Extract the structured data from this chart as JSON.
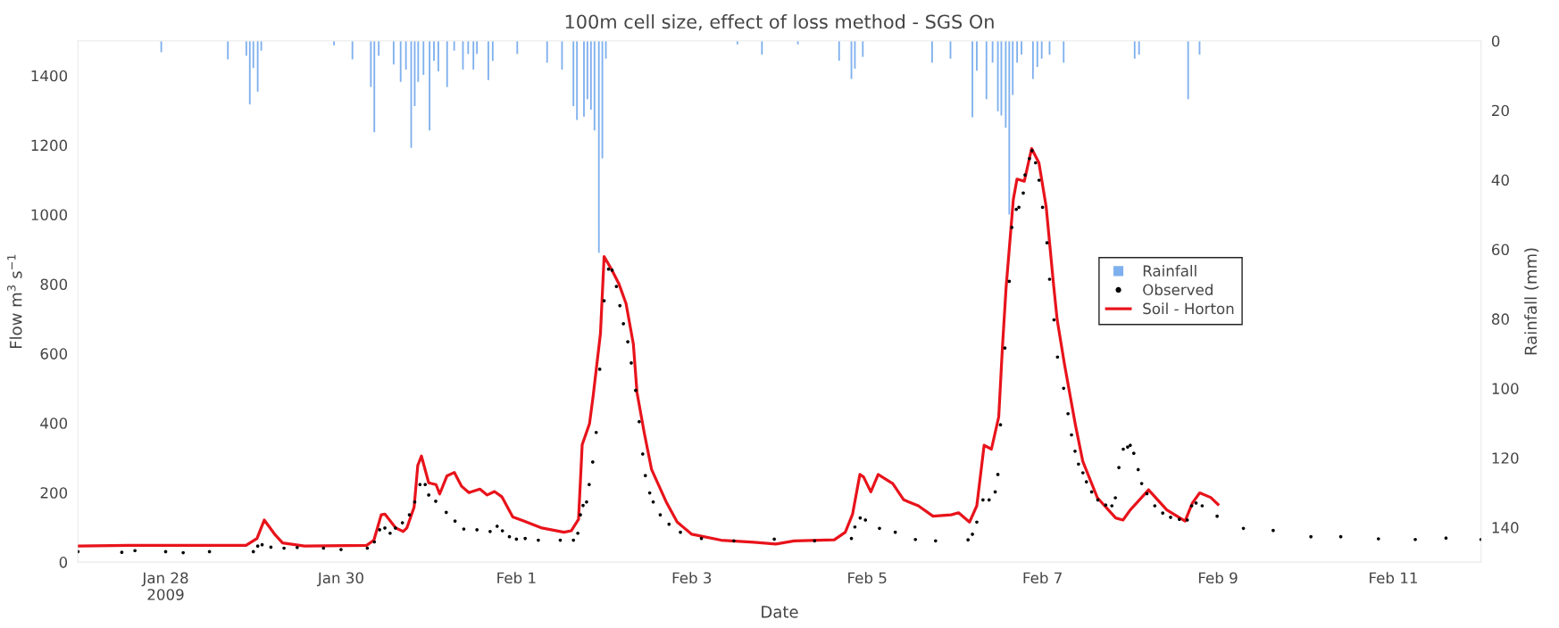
{
  "chart_data": {
    "type": "line",
    "title": "100m cell size, effect of loss method - SGS On",
    "xlabel": "Date",
    "ylabel": "Flow m$^{3}$ s$^{−1}$",
    "y2label": "Rainfall (mm)",
    "xlim": [
      "2009-01-27",
      "2009-02-12"
    ],
    "xticks": [
      {
        "value": "2009-01-28",
        "label": "Jan 28\n2009"
      },
      {
        "value": "2009-01-30",
        "label": "Jan 30"
      },
      {
        "value": "2009-02-01",
        "label": "Feb 1"
      },
      {
        "value": "2009-02-03",
        "label": "Feb 3"
      },
      {
        "value": "2009-02-05",
        "label": "Feb 5"
      },
      {
        "value": "2009-02-07",
        "label": "Feb 7"
      },
      {
        "value": "2009-02-09",
        "label": "Feb 9"
      },
      {
        "value": "2009-02-11",
        "label": "Feb 11"
      }
    ],
    "ylim": [
      0,
      1500
    ],
    "yticks": [
      0,
      200,
      400,
      600,
      800,
      1000,
      1200,
      1400
    ],
    "y2lim": [
      150,
      0
    ],
    "y2ticks": [
      0,
      20,
      40,
      60,
      80,
      100,
      120,
      140
    ],
    "legend": "right",
    "series": [
      {
        "name": "Rainfall",
        "type": "bar",
        "axis": "y2",
        "color": "#7fb0ee",
        "x": [
          "2009-01-27T22:48",
          "2009-01-28T17:02",
          "2009-01-28T22:05",
          "2009-01-28T23:02",
          "2009-01-29T00:00",
          "2009-01-29T01:12",
          "2009-01-29T02:10",
          "2009-01-29T22:05",
          "2009-01-30T03:07",
          "2009-01-30T08:10",
          "2009-01-30T09:07",
          "2009-01-30T10:19",
          "2009-01-30T14:24",
          "2009-01-30T16:19",
          "2009-01-30T17:46",
          "2009-01-30T19:12",
          "2009-01-30T20:10",
          "2009-01-30T21:07",
          "2009-01-30T22:34",
          "2009-01-31T00:14",
          "2009-01-31T01:26",
          "2009-01-31T02:38",
          "2009-01-31T05:02",
          "2009-01-31T06:58",
          "2009-01-31T09:22",
          "2009-01-31T10:48",
          "2009-01-31T12:14",
          "2009-01-31T13:12",
          "2009-01-31T16:19",
          "2009-01-31T17:31",
          "2009-02-01T00:14",
          "2009-02-01T08:24",
          "2009-02-01T12:29",
          "2009-02-01T15:36",
          "2009-02-01T16:34",
          "2009-02-01T18:29",
          "2009-02-01T19:26",
          "2009-02-01T20:24",
          "2009-02-01T21:22",
          "2009-02-01T22:34",
          "2009-02-01T23:31",
          "2009-02-02T00:29",
          "2009-02-03T12:29",
          "2009-02-03T19:12",
          "2009-02-04T05:02",
          "2009-02-04T16:19",
          "2009-02-04T19:41",
          "2009-02-04T20:38",
          "2009-02-04T22:48",
          "2009-02-05T17:46",
          "2009-02-05T22:48",
          "2009-02-06T04:48",
          "2009-02-06T06:00",
          "2009-02-06T08:38",
          "2009-02-06T10:19",
          "2009-02-06T11:46",
          "2009-02-06T12:43",
          "2009-02-06T13:55",
          "2009-02-06T14:53",
          "2009-02-06T15:50",
          "2009-02-06T17:02",
          "2009-02-06T18:14",
          "2009-02-06T21:22",
          "2009-02-06T22:34",
          "2009-02-06T23:46",
          "2009-02-07T01:55",
          "2009-02-07T05:46",
          "2009-02-08T01:12",
          "2009-02-08T02:24",
          "2009-02-08T15:50",
          "2009-02-08T18:58"
        ],
        "values": [
          3.3,
          5.3,
          4.3,
          18.3,
          7.8,
          14.6,
          2.8,
          1.3,
          5.3,
          13.3,
          26.3,
          4.3,
          6.8,
          11.8,
          8.3,
          30.8,
          18.8,
          11.8,
          9.8,
          25.8,
          5.8,
          8.8,
          13.3,
          2.8,
          8.3,
          3.8,
          8.3,
          3.8,
          11.3,
          5.8,
          3.8,
          6.3,
          8.3,
          18.8,
          22.8,
          21.8,
          16.8,
          19.8,
          25.8,
          61,
          33.8,
          5.1,
          1,
          4,
          1,
          5.7,
          11,
          8,
          4.6,
          6.3,
          5.1,
          22,
          8.6,
          16.8,
          6.3,
          20.3,
          21.5,
          25,
          50,
          15.6,
          6.3,
          4,
          11,
          7.5,
          5.1,
          4,
          6.3,
          5.1,
          4,
          16.8,
          4
        ]
      },
      {
        "name": "Observed",
        "type": "scatter",
        "marker": "circle",
        "color": "#000000",
        "x": [
          "2009-01-27T00:00",
          "2009-01-27T12:00",
          "2009-01-27T15:36",
          "2009-01-28T00:00",
          "2009-01-28T04:48",
          "2009-01-28T12:00",
          "2009-01-29T00:00",
          "2009-01-29T01:12",
          "2009-01-29T02:24",
          "2009-01-29T04:48",
          "2009-01-29T08:24",
          "2009-01-29T12:00",
          "2009-01-29T19:12",
          "2009-01-30T00:00",
          "2009-01-30T07:12",
          "2009-01-30T09:07",
          "2009-01-30T10:34",
          "2009-01-30T12:00",
          "2009-01-30T13:26",
          "2009-01-30T14:53",
          "2009-01-30T16:48",
          "2009-01-30T18:43",
          "2009-01-30T20:10",
          "2009-01-30T21:36",
          "2009-01-30T23:02",
          "2009-01-31T00:00",
          "2009-01-31T01:55",
          "2009-01-31T04:48",
          "2009-01-31T07:12",
          "2009-01-31T09:36",
          "2009-01-31T13:12",
          "2009-01-31T16:48",
          "2009-01-31T18:43",
          "2009-01-31T20:10",
          "2009-01-31T22:05",
          "2009-02-01T00:00",
          "2009-02-01T02:24",
          "2009-02-01T06:00",
          "2009-02-01T12:00",
          "2009-02-01T15:36",
          "2009-02-01T16:48",
          "2009-02-01T17:31",
          "2009-02-01T18:14",
          "2009-02-01T19:12",
          "2009-02-01T19:55",
          "2009-02-01T20:53",
          "2009-02-01T21:50",
          "2009-02-01T22:48",
          "2009-02-02T00:00",
          "2009-02-02T01:12",
          "2009-02-02T02:10",
          "2009-02-02T03:22",
          "2009-02-02T04:19",
          "2009-02-02T05:17",
          "2009-02-02T06:29",
          "2009-02-02T07:26",
          "2009-02-02T08:38",
          "2009-02-02T09:36",
          "2009-02-02T10:34",
          "2009-02-02T11:17",
          "2009-02-02T12:29",
          "2009-02-02T13:26",
          "2009-02-02T15:22",
          "2009-02-02T17:46",
          "2009-02-02T20:53",
          "2009-02-03T02:38",
          "2009-02-03T11:31",
          "2009-02-03T22:34",
          "2009-02-04T09:36",
          "2009-02-04T19:41",
          "2009-02-04T20:38",
          "2009-02-04T22:05",
          "2009-02-04T23:31",
          "2009-02-05T03:22",
          "2009-02-05T07:41",
          "2009-02-05T13:12",
          "2009-02-05T18:43",
          "2009-02-06T03:36",
          "2009-02-06T04:48",
          "2009-02-06T06:00",
          "2009-02-06T07:41",
          "2009-02-06T09:22",
          "2009-02-06T11:02",
          "2009-02-06T11:46",
          "2009-02-06T12:29",
          "2009-02-06T13:41",
          "2009-02-06T14:53",
          "2009-02-06T15:36",
          "2009-02-06T16:48",
          "2009-02-06T17:31",
          "2009-02-06T18:43",
          "2009-02-06T19:12",
          "2009-02-06T20:24",
          "2009-02-06T21:07",
          "2009-02-06T22:05",
          "2009-02-06T23:02",
          "2009-02-07T00:00",
          "2009-02-07T01:12",
          "2009-02-07T01:55",
          "2009-02-07T03:07",
          "2009-02-07T04:05",
          "2009-02-07T05:46",
          "2009-02-07T06:58",
          "2009-02-07T07:55",
          "2009-02-07T08:53",
          "2009-02-07T09:50",
          "2009-02-07T11:02",
          "2009-02-07T12:00",
          "2009-02-07T13:26",
          "2009-02-07T15:07",
          "2009-02-07T17:17",
          "2009-02-07T18:58",
          "2009-02-07T19:55",
          "2009-02-07T20:53",
          "2009-02-07T22:05",
          "2009-02-07T23:17",
          "2009-02-08T00:00",
          "2009-02-08T00:58",
          "2009-02-08T02:10",
          "2009-02-08T03:07",
          "2009-02-08T04:34",
          "2009-02-08T06:43",
          "2009-02-08T08:53",
          "2009-02-08T11:02",
          "2009-02-08T13:26",
          "2009-02-08T15:36",
          "2009-02-08T16:48",
          "2009-02-08T18:00",
          "2009-02-08T19:41",
          "2009-02-08T23:46",
          "2009-02-09T06:58",
          "2009-02-09T15:07",
          "2009-02-10T01:26",
          "2009-02-10T09:36",
          "2009-02-10T19:55",
          "2009-02-11T06:00",
          "2009-02-11T14:24",
          "2009-02-12T00:00"
        ],
        "values": [
          30,
          28,
          33,
          30,
          27,
          30,
          30,
          46,
          50,
          43,
          40,
          42,
          40,
          36,
          40,
          58,
          93,
          98,
          83,
          98,
          113,
          136,
          173,
          223,
          223,
          193,
          175,
          143,
          118,
          95,
          93,
          88,
          103,
          90,
          73,
          66,
          68,
          63,
          63,
          63,
          83,
          136,
          163,
          173,
          223,
          288,
          373,
          555,
          752,
          843,
          840,
          793,
          738,
          686,
          634,
          573,
          494,
          404,
          311,
          249,
          199,
          173,
          136,
          109,
          86,
          68,
          61,
          66,
          61,
          68,
          101,
          127,
          121,
          97,
          86,
          65,
          61,
          64,
          80,
          115,
          179,
          179,
          202,
          252,
          395,
          616,
          808,
          963,
          1015,
          1021,
          1062,
          1114,
          1161,
          1184,
          1149,
          1099,
          1021,
          919,
          814,
          697,
          590,
          500,
          427,
          366,
          319,
          282,
          257,
          231,
          202,
          179,
          164,
          162,
          185,
          272,
          325,
          331,
          336,
          313,
          266,
          226,
          197,
          162,
          141,
          129,
          123,
          121,
          162,
          170,
          162,
          132,
          97,
          91,
          73,
          73,
          67,
          65,
          69,
          65
        ]
      },
      {
        "name": "Soil - Horton",
        "line_style": "solid",
        "color": "#e8131b",
        "x": [
          "2009-01-27T00:00",
          "2009-01-27T14:00",
          "2009-01-28T22:00",
          "2009-01-29T01:00",
          "2009-01-29T03:00",
          "2009-01-29T06:00",
          "2009-01-29T08:00",
          "2009-01-29T14:00",
          "2009-01-30T07:00",
          "2009-01-30T09:00",
          "2009-01-30T11:00",
          "2009-01-30T12:00",
          "2009-01-30T15:00",
          "2009-01-30T17:00",
          "2009-01-30T18:00",
          "2009-01-30T20:00",
          "2009-01-30T21:00",
          "2009-01-30T22:00",
          "2009-01-31T00:00",
          "2009-01-31T02:00",
          "2009-01-31T03:00",
          "2009-01-31T05:00",
          "2009-01-31T07:00",
          "2009-01-31T09:00",
          "2009-01-31T11:00",
          "2009-01-31T14:00",
          "2009-01-31T16:00",
          "2009-01-31T18:00",
          "2009-01-31T20:00",
          "2009-01-31T23:00",
          "2009-02-01T02:00",
          "2009-02-01T07:00",
          "2009-02-01T13:00",
          "2009-02-01T15:00",
          "2009-02-01T17:00",
          "2009-02-01T18:00",
          "2009-02-01T20:00",
          "2009-02-01T21:00",
          "2009-02-01T23:00",
          "2009-02-02T00:00",
          "2009-02-02T02:00",
          "2009-02-02T04:00",
          "2009-02-02T06:00",
          "2009-02-02T08:00",
          "2009-02-02T09:00",
          "2009-02-02T11:00",
          "2009-02-02T13:00",
          "2009-02-02T17:00",
          "2009-02-02T20:00",
          "2009-02-03T00:00",
          "2009-02-03T08:00",
          "2009-02-03T17:00",
          "2009-02-03T23:00",
          "2009-02-04T04:00",
          "2009-02-04T15:00",
          "2009-02-04T18:00",
          "2009-02-04T20:00",
          "2009-02-04T22:00",
          "2009-02-04T23:00",
          "2009-02-05T01:00",
          "2009-02-05T03:00",
          "2009-02-05T07:00",
          "2009-02-05T10:00",
          "2009-02-05T14:00",
          "2009-02-05T18:00",
          "2009-02-05T23:00",
          "2009-02-06T01:00",
          "2009-02-06T04:00",
          "2009-02-06T06:00",
          "2009-02-06T08:00",
          "2009-02-06T10:00",
          "2009-02-06T12:00",
          "2009-02-06T13:00",
          "2009-02-06T14:00",
          "2009-02-06T16:00",
          "2009-02-06T17:00",
          "2009-02-06T19:00",
          "2009-02-06T21:00",
          "2009-02-06T23:00",
          "2009-02-07T01:00",
          "2009-02-07T03:00",
          "2009-02-07T04:00",
          "2009-02-07T06:00",
          "2009-02-07T09:00",
          "2009-02-07T11:00",
          "2009-02-07T15:00",
          "2009-02-07T20:00",
          "2009-02-07T22:00",
          "2009-02-08T00:00",
          "2009-02-08T05:00",
          "2009-02-08T10:00",
          "2009-02-08T15:00",
          "2009-02-08T17:00",
          "2009-02-08T19:00",
          "2009-02-08T22:00",
          "2009-02-09T00:00"
        ],
        "values": [
          46,
          48,
          48,
          68,
          121,
          78,
          55,
          46,
          48,
          63,
          136,
          138,
          98,
          88,
          98,
          158,
          278,
          305,
          228,
          223,
          196,
          248,
          258,
          218,
          200,
          210,
          193,
          203,
          188,
          130,
          118,
          98,
          86,
          90,
          123,
          338,
          398,
          478,
          658,
          879,
          843,
          802,
          744,
          628,
          488,
          371,
          266,
          173,
          115,
          80,
          63,
          57,
          52,
          61,
          64,
          86,
          138,
          252,
          245,
          202,
          252,
          226,
          179,
          162,
          132,
          136,
          142,
          115,
          162,
          336,
          325,
          418,
          616,
          788,
          1044,
          1102,
          1096,
          1190,
          1149,
          1021,
          799,
          697,
          569,
          394,
          290,
          185,
          127,
          121,
          150,
          208,
          150,
          118,
          170,
          199,
          186,
          166
        ]
      }
    ]
  }
}
